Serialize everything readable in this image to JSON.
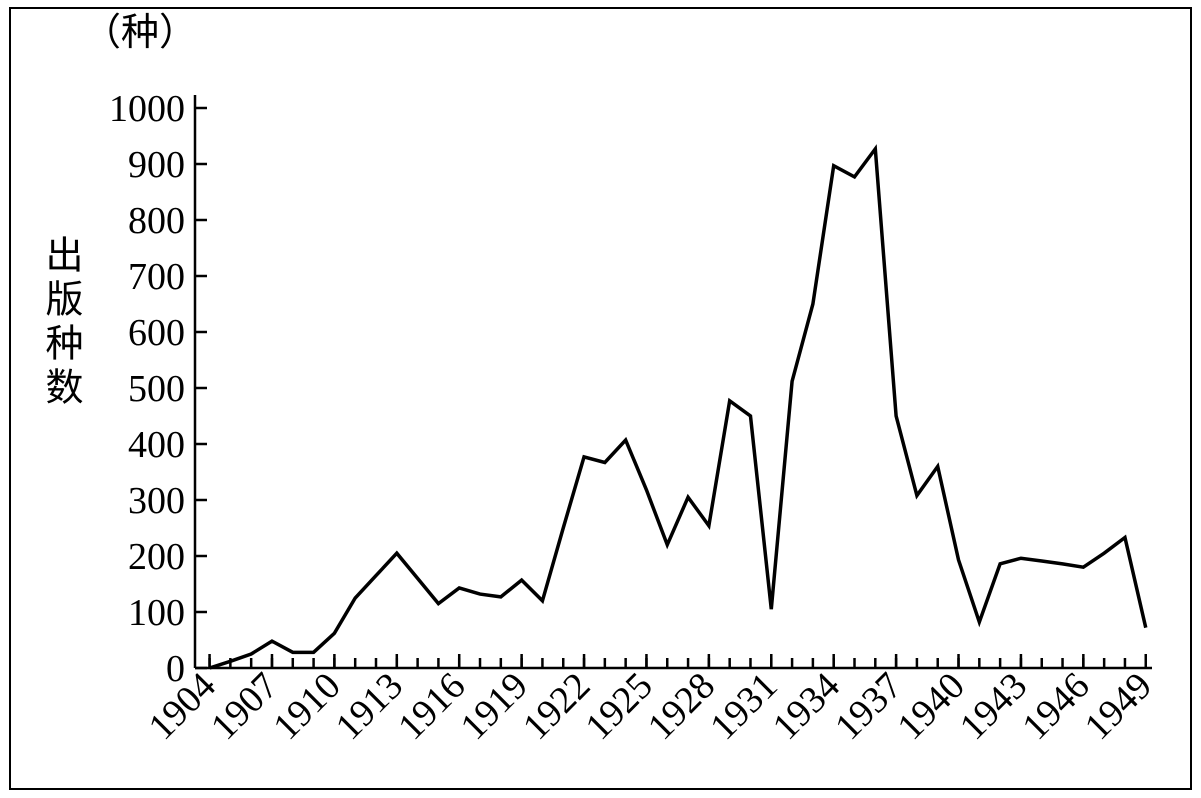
{
  "chart_data": {
    "type": "line",
    "y_unit": "（种）",
    "y_label": "出版种数",
    "x": [
      1904,
      1905,
      1906,
      1907,
      1908,
      1909,
      1910,
      1911,
      1912,
      1913,
      1914,
      1915,
      1916,
      1917,
      1918,
      1919,
      1920,
      1921,
      1922,
      1923,
      1924,
      1925,
      1926,
      1927,
      1928,
      1929,
      1930,
      1931,
      1932,
      1933,
      1934,
      1935,
      1936,
      1937,
      1938,
      1939,
      1940,
      1941,
      1942,
      1943,
      1944,
      1945,
      1946,
      1947,
      1948,
      1949
    ],
    "series": [
      {
        "color": "#000000",
        "values": [
          0,
          12,
          25,
          48,
          28,
          28,
          62,
          125,
          165,
          205,
          160,
          115,
          143,
          132,
          127,
          157,
          120,
          250,
          377,
          367,
          407,
          318,
          220,
          305,
          254,
          477,
          450,
          105,
          512,
          650,
          897,
          877,
          927,
          450,
          308,
          360,
          193,
          82,
          186,
          196,
          191,
          186,
          180,
          205,
          233,
          72
        ]
      }
    ],
    "xlim": [
      1903.3,
      1949.3
    ],
    "xticks": [
      1904,
      1907,
      1910,
      1913,
      1916,
      1919,
      1922,
      1925,
      1928,
      1931,
      1934,
      1937,
      1940,
      1943,
      1946,
      1949
    ],
    "ylim": [
      0,
      1000
    ],
    "yticks": [
      0,
      100,
      200,
      300,
      400,
      500,
      600,
      700,
      800,
      900,
      1000
    ],
    "grid": false
  }
}
